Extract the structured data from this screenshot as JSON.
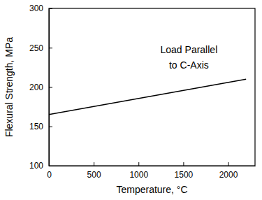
{
  "chart_data": {
    "type": "line",
    "x_label": "Temperature, °C",
    "y_label": "Flexural Strength, MPa",
    "annotations": [
      "Load Parallel",
      "to C-Axis"
    ],
    "x": [
      0,
      2200
    ],
    "values": [
      165,
      210
    ],
    "color": "#000000",
    "xlim": [
      0,
      2300
    ],
    "xticks": [
      0,
      500,
      1000,
      1500,
      2000
    ],
    "ylim": [
      100,
      300
    ],
    "yticks": [
      100,
      150,
      200,
      250,
      300
    ],
    "grid": false
  }
}
